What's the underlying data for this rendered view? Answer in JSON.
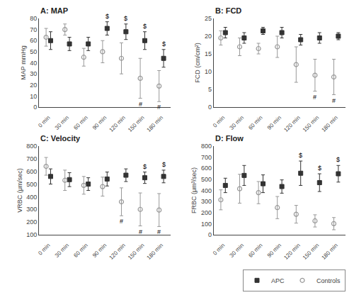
{
  "chart_data": [
    {
      "type": "scatter",
      "title": "A: MAP",
      "ylabel": "MAP mmHg",
      "categories": [
        "0 min",
        "30 min",
        "60 min",
        "90 min",
        "120 min",
        "150 min",
        "180 min"
      ],
      "ylim": [
        0,
        80
      ],
      "yticks": [
        0,
        10,
        20,
        30,
        40,
        50,
        60,
        70,
        80
      ],
      "grid": false,
      "series": [
        {
          "name": "APC",
          "color": "#333333",
          "marker": "square",
          "values": [
            60,
            57,
            57,
            71,
            68,
            60,
            44
          ],
          "errors": [
            8,
            6,
            6,
            6,
            7,
            8,
            8
          ],
          "annotations": [
            null,
            null,
            null,
            "$",
            "$",
            "$",
            "$"
          ]
        },
        {
          "name": "Controls",
          "color": "#999999",
          "marker": "circle-open",
          "values": [
            63,
            70,
            45,
            50,
            44,
            26,
            19
          ],
          "errors": [
            8,
            5,
            8,
            10,
            14,
            18,
            14
          ],
          "annotations": [
            null,
            null,
            null,
            null,
            null,
            "#",
            "#"
          ]
        }
      ]
    },
    {
      "type": "scatter",
      "title": "B: FCD",
      "ylabel": "FCD (cm/cm²)",
      "categories": [
        "0 min",
        "30 min",
        "60 min",
        "90 min",
        "120 min",
        "150 min",
        "180 min"
      ],
      "ylim": [
        0,
        25
      ],
      "yticks": [
        0,
        5,
        10,
        15,
        20,
        25
      ],
      "grid": false,
      "series": [
        {
          "name": "APC",
          "color": "#333333",
          "marker": "square",
          "values": [
            21,
            19.5,
            21.5,
            21,
            19,
            19.5,
            20
          ],
          "errors": [
            1.5,
            1.5,
            1.0,
            1.5,
            1.5,
            1.5,
            1.0
          ]
        },
        {
          "name": "Controls",
          "color": "#999999",
          "marker": "circle-open",
          "values": [
            19.5,
            17,
            16.5,
            17,
            12,
            9,
            8.5
          ],
          "errors": [
            2.0,
            2.5,
            1.5,
            3.0,
            5.0,
            4.5,
            5.0
          ],
          "annotations": [
            null,
            null,
            null,
            null,
            null,
            "#",
            "#"
          ]
        }
      ]
    },
    {
      "type": "scatter",
      "title": "C: Velocity",
      "ylabel": "VRBC (μm/sec)",
      "categories": [
        "0 min",
        "30 min",
        "60 min",
        "90 min",
        "120 min",
        "150 min",
        "180 min"
      ],
      "ylim": [
        100,
        800
      ],
      "yticks": [
        100,
        200,
        300,
        400,
        500,
        600,
        700,
        800
      ],
      "grid": false,
      "series": [
        {
          "name": "APC",
          "color": "#333333",
          "marker": "square",
          "values": [
            560,
            535,
            500,
            540,
            570,
            550,
            560
          ],
          "errors": [
            60,
            55,
            50,
            55,
            50,
            45,
            50
          ],
          "annotations": [
            null,
            null,
            null,
            null,
            null,
            "$",
            "$"
          ]
        },
        {
          "name": "Controls",
          "color": "#999999",
          "marker": "circle-open",
          "values": [
            640,
            530,
            490,
            480,
            360,
            300,
            295
          ],
          "errors": [
            70,
            80,
            70,
            75,
            110,
            130,
            130
          ],
          "annotations": [
            null,
            null,
            null,
            null,
            "#",
            "#",
            "#"
          ]
        }
      ]
    },
    {
      "type": "scatter",
      "title": "D: Flow",
      "ylabel": "FRBC (μm³/sec)",
      "categories": [
        "0 min",
        "30 min",
        "60 min",
        "90 min",
        "120 min",
        "150 min",
        "180 min"
      ],
      "ylim": [
        0,
        800
      ],
      "yticks": [
        0,
        100,
        200,
        300,
        400,
        500,
        600,
        700,
        800
      ],
      "grid": false,
      "legend": "lower right",
      "series": [
        {
          "name": "APC",
          "color": "#333333",
          "marker": "square",
          "values": [
            445,
            535,
            460,
            435,
            555,
            470,
            550
          ],
          "errors": [
            65,
            90,
            80,
            60,
            110,
            80,
            75
          ],
          "annotations": [
            null,
            null,
            null,
            null,
            "$",
            "$",
            "$"
          ]
        },
        {
          "name": "Controls",
          "color": "#999999",
          "marker": "circle-open",
          "values": [
            315,
            415,
            380,
            245,
            185,
            125,
            100
          ],
          "errors": [
            90,
            130,
            100,
            100,
            80,
            55,
            55
          ]
        }
      ]
    }
  ]
}
